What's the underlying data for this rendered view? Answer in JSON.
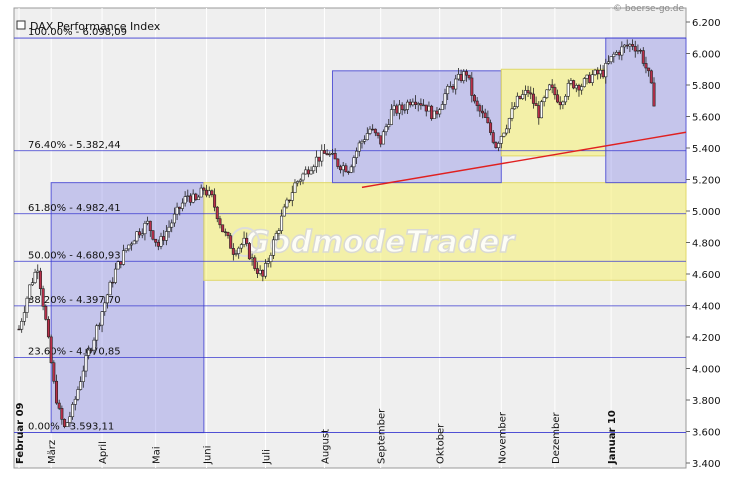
{
  "source_label": "© boerse-go.de",
  "watermark": "GodmodeTrader",
  "chart_data": {
    "type": "candlestick",
    "title": "DAX Performance Index",
    "y_axis_side": "right",
    "ylim": [
      3400,
      6300
    ],
    "y_ticks": [
      "6.200",
      "6.000",
      "5.800",
      "5.600",
      "5.400",
      "5.200",
      "5.000",
      "4.800",
      "4.600",
      "4.400",
      "4.200",
      "4.000",
      "3.800",
      "3.600",
      "3.400"
    ],
    "y_tick_values": [
      6200,
      6000,
      5800,
      5600,
      5400,
      5200,
      5000,
      4800,
      4600,
      4400,
      4200,
      4000,
      3800,
      3600,
      3400
    ],
    "x_labels": [
      {
        "label": "Februar 09",
        "day": 0,
        "bold": true
      },
      {
        "label": "März",
        "day": 12
      },
      {
        "label": "April",
        "day": 31
      },
      {
        "label": "Mai",
        "day": 51
      },
      {
        "label": "Juni",
        "day": 70
      },
      {
        "label": "Juli",
        "day": 92
      },
      {
        "label": "August",
        "day": 114
      },
      {
        "label": "September",
        "day": 135
      },
      {
        "label": "Oktober",
        "day": 157
      },
      {
        "label": "November",
        "day": 180
      },
      {
        "label": "Dezember",
        "day": 200
      },
      {
        "label": "Januar 10",
        "day": 221,
        "bold": true
      }
    ],
    "fib_levels": [
      {
        "label": "100.00% - 6.098,09",
        "value": 6098.09
      },
      {
        "label": "76.40% - 5.382,44",
        "value": 5382.44
      },
      {
        "label": "61.80% - 4.982,41",
        "value": 4982.41
      },
      {
        "label": "50.00% - 4.680,93",
        "value": 4680.93
      },
      {
        "label": "38.20% - 4.397,70",
        "value": 4397.7
      },
      {
        "label": "23.60% - 4.070,85",
        "value": 4070.85
      },
      {
        "label": "0.00% - 3.593,11",
        "value": 3593.11
      }
    ],
    "zones": [
      {
        "kind": "blue",
        "day_start": 12,
        "day_end": 69,
        "low": 3593,
        "high": 5180
      },
      {
        "kind": "yellow",
        "day_start": 69,
        "day_end": 250,
        "low": 4560,
        "high": 5180
      },
      {
        "kind": "blue",
        "day_start": 117,
        "day_end": 180,
        "low": 5180,
        "high": 5890
      },
      {
        "kind": "yellow",
        "day_start": 180,
        "day_end": 219,
        "low": 5350,
        "high": 5900
      },
      {
        "kind": "blue",
        "day_start": 219,
        "day_end": 250,
        "low": 5180,
        "high": 6098
      }
    ],
    "trendline": {
      "x1_day": 128,
      "y1": 5150,
      "x2_day": 250,
      "y2": 5500
    },
    "price_path": [
      [
        0,
        4250
      ],
      [
        4,
        4520
      ],
      [
        7,
        4650
      ],
      [
        10,
        4300
      ],
      [
        13,
        3900
      ],
      [
        15,
        3720
      ],
      [
        17,
        3620
      ],
      [
        20,
        3740
      ],
      [
        24,
        4000
      ],
      [
        28,
        4200
      ],
      [
        32,
        4420
      ],
      [
        36,
        4620
      ],
      [
        40,
        4760
      ],
      [
        44,
        4860
      ],
      [
        48,
        4920
      ],
      [
        52,
        4780
      ],
      [
        56,
        4900
      ],
      [
        60,
        5020
      ],
      [
        63,
        5100
      ],
      [
        66,
        5060
      ],
      [
        69,
        5140
      ],
      [
        72,
        5080
      ],
      [
        76,
        4880
      ],
      [
        80,
        4750
      ],
      [
        84,
        4800
      ],
      [
        88,
        4650
      ],
      [
        91,
        4580
      ],
      [
        95,
        4800
      ],
      [
        99,
        5000
      ],
      [
        103,
        5170
      ],
      [
        107,
        5250
      ],
      [
        111,
        5330
      ],
      [
        115,
        5370
      ],
      [
        119,
        5300
      ],
      [
        123,
        5270
      ],
      [
        127,
        5420
      ],
      [
        131,
        5520
      ],
      [
        135,
        5440
      ],
      [
        139,
        5630
      ],
      [
        143,
        5650
      ],
      [
        147,
        5720
      ],
      [
        151,
        5680
      ],
      [
        155,
        5600
      ],
      [
        159,
        5740
      ],
      [
        163,
        5820
      ],
      [
        167,
        5880
      ],
      [
        170,
        5680
      ],
      [
        174,
        5580
      ],
      [
        178,
        5420
      ],
      [
        182,
        5550
      ],
      [
        186,
        5700
      ],
      [
        190,
        5760
      ],
      [
        194,
        5620
      ],
      [
        198,
        5780
      ],
      [
        202,
        5700
      ],
      [
        206,
        5810
      ],
      [
        210,
        5800
      ],
      [
        214,
        5860
      ],
      [
        218,
        5880
      ],
      [
        222,
        5990
      ],
      [
        226,
        6040
      ],
      [
        229,
        6060
      ],
      [
        232,
        6010
      ],
      [
        235,
        5860
      ],
      [
        237,
        5700
      ]
    ]
  }
}
